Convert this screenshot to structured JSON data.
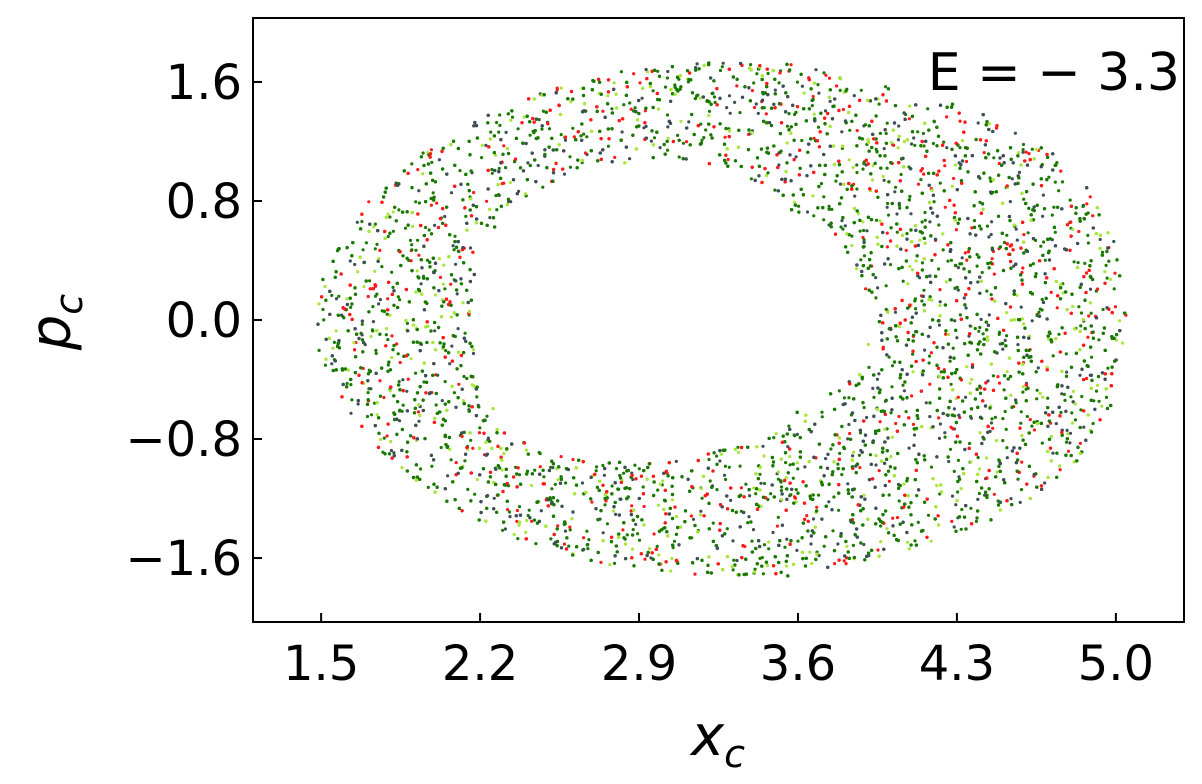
{
  "chart_data": {
    "type": "scatter",
    "title": "",
    "xlabel": "x",
    "xlabel_sub": "c",
    "ylabel": "p",
    "ylabel_sub": "c",
    "annotation": "E = − 3.3",
    "xlim": [
      1.2,
      5.3
    ],
    "ylim": [
      -2.03,
      2.03
    ],
    "xticks": [
      1.5,
      2.2,
      2.9,
      3.6,
      4.3,
      5.0
    ],
    "xtick_labels": [
      "1.5",
      "2.2",
      "2.9",
      "3.6",
      "4.3",
      "5.0"
    ],
    "yticks": [
      1.6,
      0.8,
      0.0,
      -0.8,
      -1.6
    ],
    "ytick_labels": [
      "1.6",
      "0.8",
      "0.0",
      "−0.8",
      "−1.6"
    ],
    "grid": false,
    "legend": "none",
    "series_colors": [
      "#1a7a00",
      "#3d4f57",
      "#ff1a1a",
      "#a8e63a"
    ],
    "region": {
      "description_values_in_data_units": true,
      "outer_boundary": [
        [
          5.05,
          0.0
        ],
        [
          5.0,
          0.5
        ],
        [
          4.9,
          0.85
        ],
        [
          4.7,
          1.15
        ],
        [
          4.4,
          1.4
        ],
        [
          4.0,
          1.58
        ],
        [
          3.6,
          1.72
        ],
        [
          3.2,
          1.73
        ],
        [
          2.8,
          1.67
        ],
        [
          2.4,
          1.5
        ],
        [
          2.0,
          1.2
        ],
        [
          1.7,
          0.8
        ],
        [
          1.5,
          0.3
        ],
        [
          1.47,
          0.0
        ],
        [
          1.5,
          -0.3
        ],
        [
          1.7,
          -0.8
        ],
        [
          2.0,
          -1.2
        ],
        [
          2.4,
          -1.5
        ],
        [
          2.8,
          -1.67
        ],
        [
          3.2,
          -1.73
        ],
        [
          3.6,
          -1.72
        ],
        [
          4.0,
          -1.58
        ],
        [
          4.4,
          -1.4
        ],
        [
          4.7,
          -1.15
        ],
        [
          4.9,
          -0.85
        ],
        [
          5.0,
          -0.5
        ]
      ],
      "inner_hole": [
        [
          3.95,
          0.05
        ],
        [
          3.85,
          0.35
        ],
        [
          3.75,
          0.6
        ],
        [
          3.55,
          0.75
        ],
        [
          3.35,
          1.0
        ],
        [
          3.0,
          1.1
        ],
        [
          2.65,
          1.0
        ],
        [
          2.35,
          0.8
        ],
        [
          2.2,
          0.45
        ],
        [
          2.15,
          0.0
        ],
        [
          2.2,
          -0.45
        ],
        [
          2.35,
          -0.8
        ],
        [
          2.65,
          -0.95
        ],
        [
          3.0,
          -0.95
        ],
        [
          3.35,
          -0.85
        ],
        [
          3.55,
          -0.65
        ],
        [
          3.8,
          -0.45
        ],
        [
          3.9,
          -0.2
        ]
      ]
    }
  }
}
